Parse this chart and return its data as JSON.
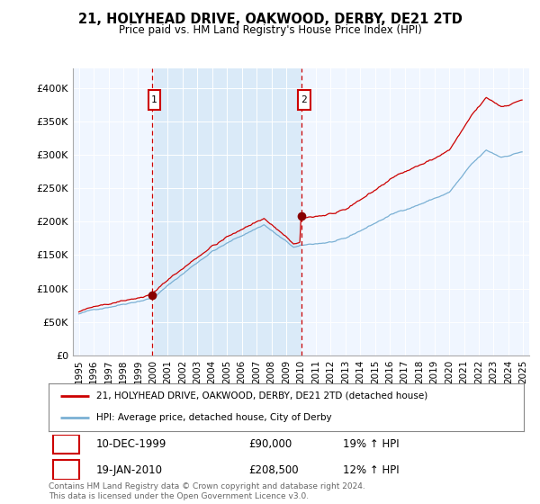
{
  "title": "21, HOLYHEAD DRIVE, OAKWOOD, DERBY, DE21 2TD",
  "subtitle": "Price paid vs. HM Land Registry's House Price Index (HPI)",
  "legend_line1": "21, HOLYHEAD DRIVE, OAKWOOD, DERBY, DE21 2TD (detached house)",
  "legend_line2": "HPI: Average price, detached house, City of Derby",
  "annotation1_label": "1",
  "annotation1_date": "10-DEC-1999",
  "annotation1_price": "£90,000",
  "annotation1_hpi": "19% ↑ HPI",
  "annotation2_label": "2",
  "annotation2_date": "19-JAN-2010",
  "annotation2_price": "£208,500",
  "annotation2_hpi": "12% ↑ HPI",
  "footer": "Contains HM Land Registry data © Crown copyright and database right 2024.\nThis data is licensed under the Open Government Licence v3.0.",
  "ylim": [
    0,
    420000
  ],
  "yticks": [
    0,
    50000,
    100000,
    150000,
    200000,
    250000,
    300000,
    350000,
    400000
  ],
  "ytick_labels": [
    "£0",
    "£50K",
    "£100K",
    "£150K",
    "£200K",
    "£250K",
    "£300K",
    "£350K",
    "£400K"
  ],
  "property_color": "#cc0000",
  "hpi_color": "#7ab0d4",
  "vline_color": "#cc0000",
  "background_color": "#f0f6ff",
  "shade_color": "#daeaf8",
  "annotation_box_color": "#cc0000",
  "sale1_x": 1999.917,
  "sale1_y": 90000,
  "sale2_x": 2010.05,
  "sale2_y": 208500,
  "xmin": 1995.0,
  "xmax": 2025.0
}
